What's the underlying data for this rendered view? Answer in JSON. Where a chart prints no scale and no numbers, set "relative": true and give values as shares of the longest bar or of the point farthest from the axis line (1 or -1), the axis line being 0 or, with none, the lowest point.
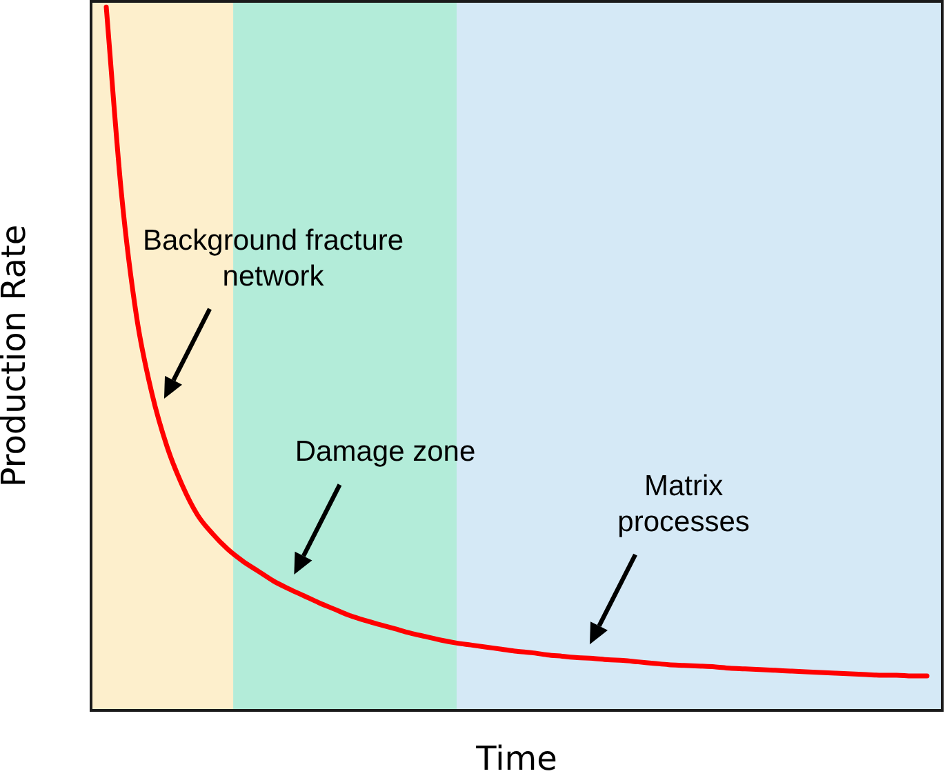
{
  "chart_data": {
    "type": "line",
    "xlabel": "Time",
    "ylabel": "Production Rate",
    "relative": true,
    "categories": [
      null,
      null,
      null,
      null,
      null,
      null,
      null,
      null,
      null,
      null,
      null,
      null,
      null,
      null,
      null,
      null,
      null,
      null,
      null,
      null,
      null,
      null,
      null,
      null,
      null,
      null,
      null,
      null,
      null,
      null,
      null,
      null,
      null,
      null,
      null,
      null,
      null,
      null,
      null,
      null,
      null,
      null,
      null,
      null,
      null,
      null,
      null,
      null,
      null,
      null,
      null,
      null,
      null,
      null,
      null,
      null,
      null
    ],
    "series": [
      {
        "color": "#ff0000",
        "values": [
          null,
          1.0,
          0.735,
          0.559,
          0.451,
          0.375,
          0.32,
          0.278,
          0.251,
          0.229,
          0.212,
          0.198,
          0.184,
          0.173,
          0.163,
          0.153,
          0.144,
          0.135,
          0.128,
          0.122,
          0.116,
          0.11,
          0.105,
          0.1,
          0.096,
          0.093,
          0.09,
          0.087,
          0.084,
          0.082,
          0.079,
          0.077,
          0.075,
          0.074,
          0.072,
          0.071,
          0.069,
          0.067,
          0.065,
          0.064,
          0.063,
          0.062,
          0.06,
          0.059,
          0.058,
          0.057,
          0.056,
          0.055,
          0.054,
          0.053,
          0.052,
          0.051,
          0.05,
          0.05,
          0.049,
          0.049,
          null
        ]
      }
    ],
    "annotations": [
      "Background fracture network",
      "Damage zone",
      "Matrix processes"
    ]
  }
}
